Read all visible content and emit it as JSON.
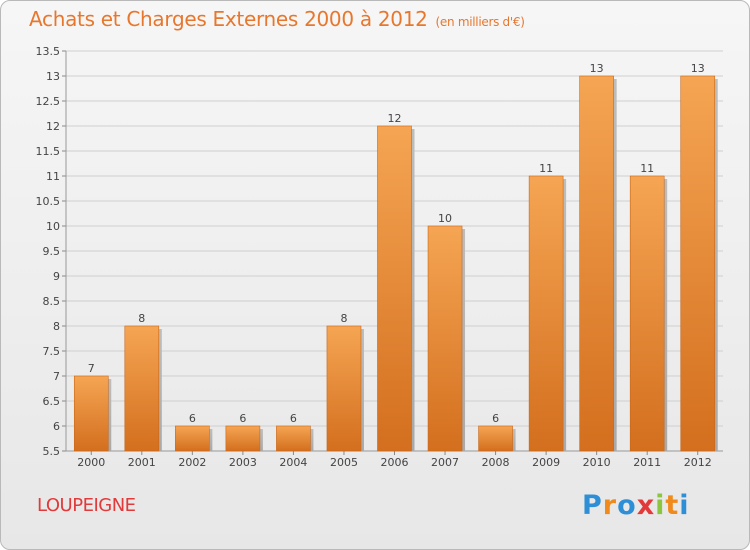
{
  "title": "Achats et Charges Externes 2000 à 2012",
  "subtitle": "(en milliers d'€)",
  "town": "LOUPEIGNE",
  "logo": {
    "text": "Proxiti",
    "letters": [
      "P",
      "r",
      "o",
      "x",
      "i",
      "t",
      "i"
    ],
    "colors": [
      "#2f8fd6",
      "#f08a1c",
      "#2f8fd6",
      "#e23a3a",
      "#8cc63f",
      "#f08a1c",
      "#2f8fd6"
    ]
  },
  "colors": {
    "accent": "#e8772e",
    "bar_top": "#f5a553",
    "bar_bottom": "#d36f1e",
    "grid": "#cfcfcf",
    "town": "#e23a3a"
  },
  "chart_data": {
    "type": "bar",
    "categories": [
      "2000",
      "2001",
      "2002",
      "2003",
      "2004",
      "2005",
      "2006",
      "2007",
      "2008",
      "2009",
      "2010",
      "2011",
      "2012"
    ],
    "values": [
      7,
      8,
      6,
      6,
      6,
      8,
      12,
      10,
      6,
      11,
      13,
      11,
      13
    ],
    "data_labels": [
      "7",
      "8",
      "6",
      "6",
      "6",
      "8",
      "12",
      "10",
      "6",
      "11",
      "13",
      "11",
      "13"
    ],
    "ylim": [
      5.5,
      13.5
    ],
    "yticks": [
      "5.5",
      "6",
      "6.5",
      "7",
      "7.5",
      "8",
      "8.5",
      "9",
      "9.5",
      "10",
      "10.5",
      "11",
      "11.5",
      "12",
      "12.5",
      "13",
      "13.5"
    ],
    "xlabel": "",
    "ylabel": "",
    "grid": true
  }
}
